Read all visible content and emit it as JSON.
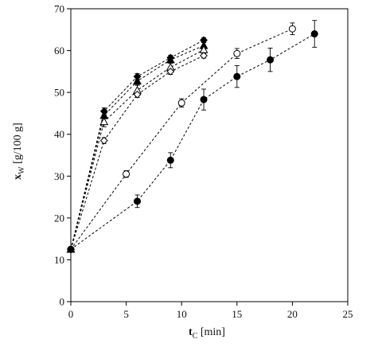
{
  "chart_data": {
    "type": "scatter",
    "title": "",
    "xlabel": {
      "main": "t",
      "sub": "C",
      "unit": " [min]"
    },
    "ylabel": {
      "main": "x",
      "sub": "W",
      "unit": " [g/100 g]"
    },
    "xlim": [
      0,
      25
    ],
    "ylim": [
      0,
      70
    ],
    "xticks": [
      0,
      5,
      10,
      15,
      20,
      25
    ],
    "yticks": [
      0,
      10,
      20,
      30,
      40,
      50,
      60,
      70
    ],
    "grid": false,
    "legend": "none",
    "line_style": "dashed",
    "series": [
      {
        "marker": "filled-diamond",
        "points": [
          [
            0,
            12.5
          ],
          [
            3,
            45.5
          ],
          [
            6,
            53.8
          ],
          [
            9,
            58.3
          ],
          [
            12,
            62.5
          ]
        ],
        "err": [
          0,
          0.8,
          0.7,
          0.6,
          0.6
        ]
      },
      {
        "marker": "filled-triangle",
        "points": [
          [
            0,
            12.5
          ],
          [
            3,
            44.5
          ],
          [
            6,
            52.7
          ],
          [
            9,
            57.8
          ],
          [
            12,
            61.2
          ]
        ],
        "err": [
          0,
          0.8,
          0.8,
          0.8,
          0.8
        ]
      },
      {
        "marker": "open-triangle",
        "points": [
          [
            0,
            12.5
          ],
          [
            3,
            43.0
          ],
          [
            6,
            50.5
          ],
          [
            9,
            56.0
          ],
          [
            12,
            60.2
          ]
        ],
        "err": [
          0,
          1.2,
          1.2,
          1.0,
          1.0
        ]
      },
      {
        "marker": "open-diamond",
        "points": [
          [
            0,
            12.5
          ],
          [
            3,
            38.5
          ],
          [
            6,
            49.5
          ],
          [
            9,
            55.0
          ],
          [
            12,
            58.8
          ]
        ],
        "err": [
          0,
          0.7,
          0.7,
          0.7,
          0.6
        ]
      },
      {
        "marker": "open-circle",
        "points": [
          [
            0,
            12.5
          ],
          [
            5,
            30.5
          ],
          [
            10,
            47.5
          ],
          [
            15,
            59.3
          ],
          [
            20,
            65.2
          ]
        ],
        "err": [
          0,
          0.8,
          1.0,
          1.2,
          1.4
        ]
      },
      {
        "marker": "filled-circle",
        "points": [
          [
            0,
            12.5
          ],
          [
            6,
            24.0
          ],
          [
            9,
            33.8
          ],
          [
            12,
            48.3
          ],
          [
            15,
            53.8
          ],
          [
            18,
            57.8
          ],
          [
            22,
            64.0
          ]
        ],
        "err": [
          0,
          1.5,
          1.8,
          2.5,
          2.6,
          2.8,
          3.2
        ]
      }
    ]
  }
}
